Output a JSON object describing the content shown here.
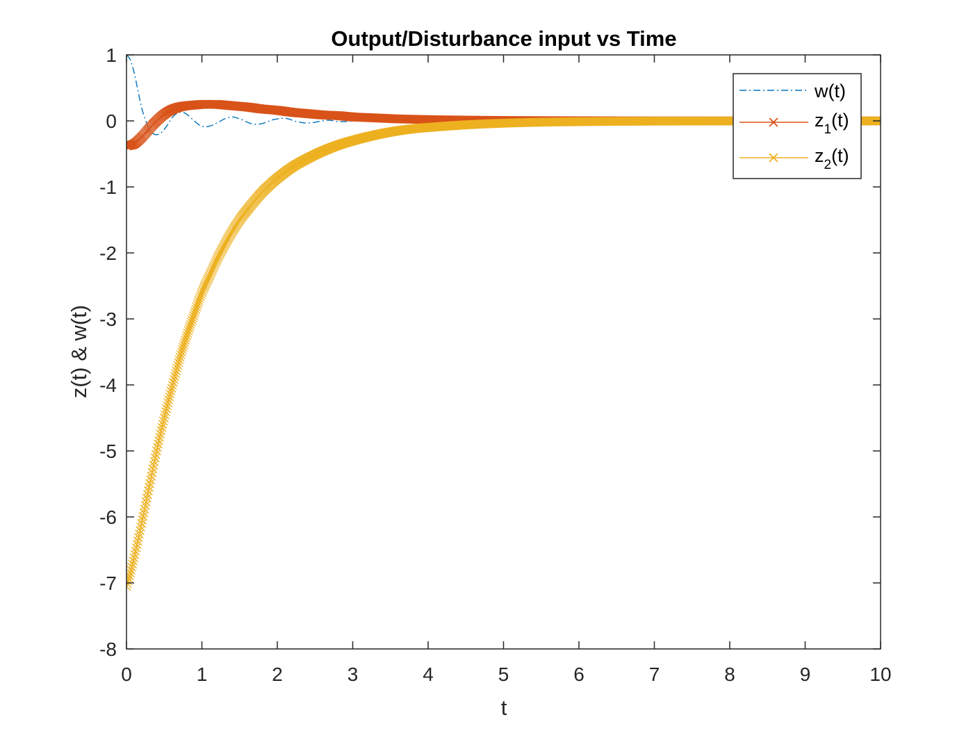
{
  "chart_data": {
    "type": "line",
    "title": "Output/Disturbance input vs Time",
    "xlabel": "t",
    "ylabel": "z(t) & w(t)",
    "xlim": [
      0,
      10
    ],
    "ylim": [
      -8,
      1
    ],
    "xticks": [
      0,
      1,
      2,
      3,
      4,
      5,
      6,
      7,
      8,
      9,
      10
    ],
    "yticks": [
      1,
      0,
      -1,
      -2,
      -3,
      -4,
      -5,
      -6,
      -7,
      -8
    ],
    "grid": false,
    "box": true,
    "legend_position": "top-right",
    "series": [
      {
        "name": "w(t)",
        "legend_label_base": "w(t)",
        "legend_label_sub": "",
        "legend_label_tail": "",
        "color": "#0072BD",
        "line_style": "dash-dot",
        "marker": "none",
        "x": [
          0,
          0.05,
          0.1,
          0.15,
          0.2,
          0.25,
          0.3,
          0.35,
          0.4,
          0.45,
          0.5,
          0.55,
          0.6,
          0.65,
          0.7,
          0.75,
          0.8,
          0.85,
          0.9,
          0.95,
          1.0,
          1.05,
          1.1,
          1.15,
          1.2,
          1.25,
          1.3,
          1.35,
          1.4,
          1.45,
          1.5,
          1.55,
          1.6,
          1.65,
          1.7,
          1.75,
          1.8,
          1.85,
          1.9,
          1.95,
          2.0,
          2.05,
          2.1,
          2.15,
          2.2,
          2.25,
          2.3,
          2.35,
          2.4,
          2.45,
          2.5,
          2.55,
          2.6,
          2.65,
          2.7,
          2.75,
          2.8,
          2.85,
          2.9,
          2.95,
          3.0,
          3.2,
          3.4,
          3.6,
          3.8,
          4.0,
          5.0,
          6.0,
          7.0,
          8.0,
          9.0,
          10.0
        ],
        "y": [
          1.0,
          0.93,
          0.74,
          0.47,
          0.2,
          0.02,
          -0.12,
          -0.19,
          -0.21,
          -0.19,
          -0.13,
          -0.05,
          0.04,
          0.1,
          0.13,
          0.13,
          0.1,
          0.05,
          0.0,
          -0.05,
          -0.08,
          -0.09,
          -0.08,
          -0.06,
          -0.03,
          0.0,
          0.03,
          0.05,
          0.06,
          0.05,
          0.03,
          0.01,
          -0.02,
          -0.04,
          -0.05,
          -0.05,
          -0.04,
          -0.02,
          0.0,
          0.02,
          0.03,
          0.04,
          0.04,
          0.03,
          0.01,
          -0.01,
          -0.02,
          -0.03,
          -0.03,
          -0.03,
          -0.02,
          -0.01,
          0.0,
          0.01,
          0.01,
          0.0,
          -0.01,
          -0.01,
          -0.01,
          -0.01,
          0.0,
          0.0,
          0.0,
          0.0,
          0.0,
          0.0,
          0.0,
          0.0,
          0.0,
          0.0,
          0.0,
          0.0
        ]
      },
      {
        "name": "z1(t)",
        "legend_label_base": "z",
        "legend_label_sub": "1",
        "legend_label_tail": "(t)",
        "color": "#D95319",
        "line_style": "solid",
        "marker": "x",
        "x": [
          0,
          0.1,
          0.2,
          0.3,
          0.4,
          0.5,
          0.6,
          0.7,
          0.8,
          0.9,
          1.0,
          1.1,
          1.2,
          1.3,
          1.4,
          1.5,
          1.6,
          1.8,
          2.0,
          2.2,
          2.4,
          2.6,
          2.8,
          3.0,
          3.2,
          3.4,
          3.6,
          3.8,
          4.0,
          4.5,
          5.0,
          5.5,
          6.0,
          6.5,
          7.0,
          7.5,
          8.0,
          8.5,
          9.0,
          9.5,
          10.0
        ],
        "y": [
          -0.38,
          -0.35,
          -0.25,
          -0.12,
          0.0,
          0.1,
          0.17,
          0.21,
          0.23,
          0.24,
          0.25,
          0.25,
          0.25,
          0.24,
          0.23,
          0.22,
          0.21,
          0.18,
          0.16,
          0.13,
          0.11,
          0.09,
          0.08,
          0.06,
          0.05,
          0.04,
          0.03,
          0.025,
          0.02,
          0.012,
          0.007,
          0.004,
          0.002,
          0.001,
          0.0,
          0.0,
          0.0,
          0.0,
          0.0,
          0.0,
          0.0
        ]
      },
      {
        "name": "z2(t)",
        "legend_label_base": "z",
        "legend_label_sub": "2",
        "legend_label_tail": "(t)",
        "color": "#EDB120",
        "line_style": "solid",
        "marker": "x",
        "x": [
          0,
          0.05,
          0.1,
          0.2,
          0.3,
          0.4,
          0.5,
          0.6,
          0.7,
          0.8,
          0.9,
          1.0,
          1.1,
          1.2,
          1.3,
          1.4,
          1.5,
          1.6,
          1.7,
          1.8,
          1.9,
          2.0,
          2.2,
          2.4,
          2.6,
          2.8,
          3.0,
          3.2,
          3.4,
          3.6,
          3.8,
          4.0,
          4.5,
          5.0,
          5.5,
          6.0,
          6.5,
          7.0,
          7.5,
          8.0,
          8.5,
          9.0,
          9.5,
          10.0
        ],
        "y": [
          -7.05,
          -6.85,
          -6.62,
          -6.1,
          -5.55,
          -5.0,
          -4.5,
          -4.05,
          -3.62,
          -3.25,
          -2.92,
          -2.6,
          -2.35,
          -2.1,
          -1.88,
          -1.68,
          -1.5,
          -1.35,
          -1.21,
          -1.08,
          -0.97,
          -0.87,
          -0.7,
          -0.57,
          -0.46,
          -0.37,
          -0.3,
          -0.24,
          -0.19,
          -0.15,
          -0.12,
          -0.1,
          -0.06,
          -0.035,
          -0.02,
          -0.012,
          -0.007,
          -0.004,
          -0.002,
          -0.001,
          0.0,
          0.0,
          0.0,
          0.0
        ]
      }
    ]
  }
}
